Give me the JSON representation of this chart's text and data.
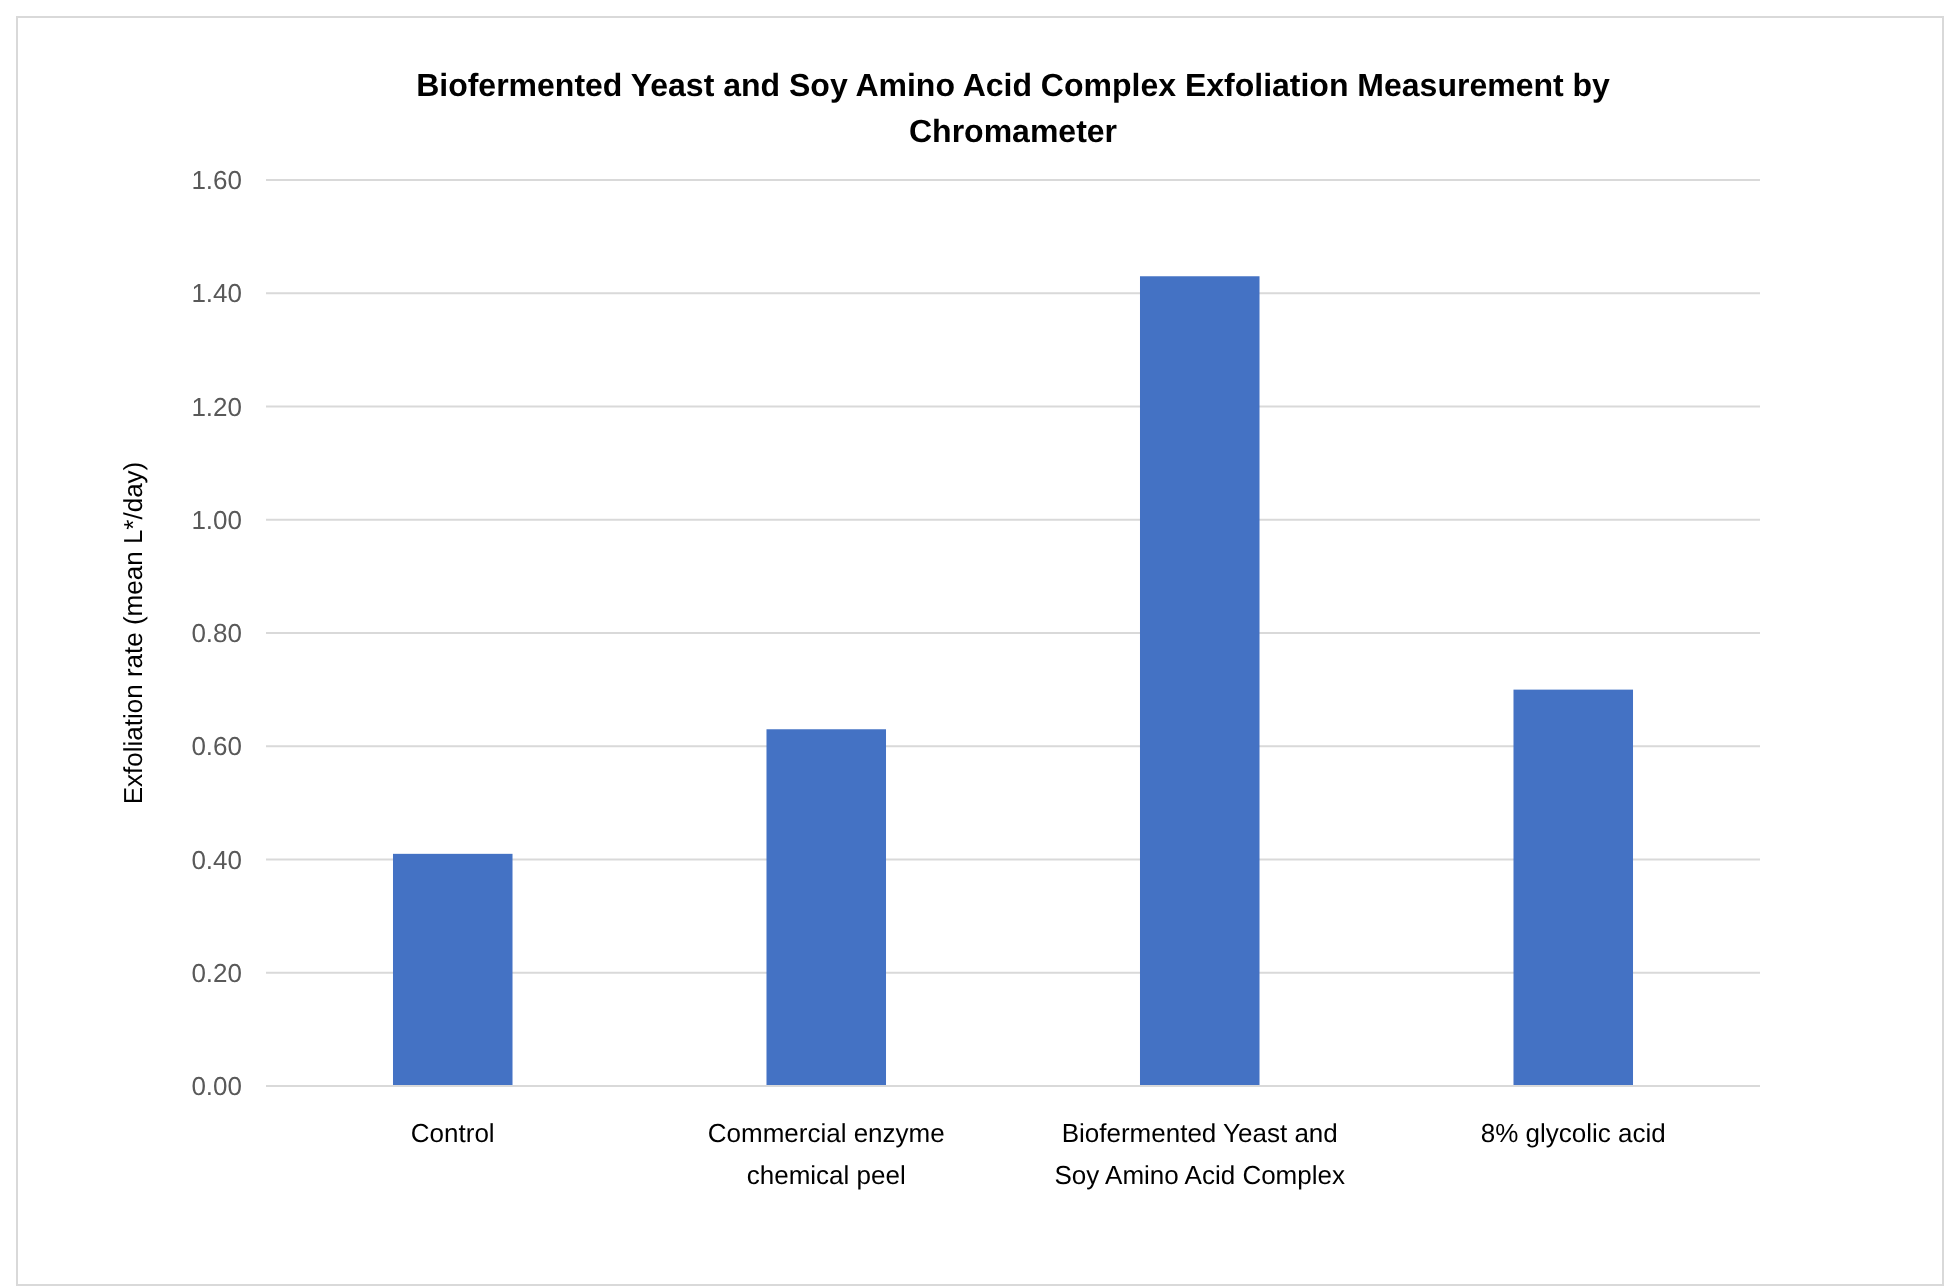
{
  "chart_data": {
    "type": "bar",
    "title": "Biofermented Yeast and Soy Amino Acid Complex Exfoliation Measurement by Chromameter",
    "ylabel": "Exfoliation rate (mean L*/day)",
    "categories": [
      "Control",
      "Commercial enzyme chemical peel",
      "Biofermented Yeast and Soy Amino Acid Complex",
      "8% glycolic acid"
    ],
    "values": [
      0.41,
      0.63,
      1.43,
      0.7
    ],
    "color": "#4472c4",
    "ylim": [
      0,
      1.6
    ],
    "yticks": [
      {
        "value": 0,
        "label": "0.00"
      },
      {
        "value": 0.2,
        "label": "0.20"
      },
      {
        "value": 0.4,
        "label": "0.40"
      },
      {
        "value": 0.6,
        "label": "0.60"
      },
      {
        "value": 0.8,
        "label": "0.80"
      },
      {
        "value": 1.0,
        "label": "1.00"
      },
      {
        "value": 1.2,
        "label": "1.20"
      },
      {
        "value": 1.4,
        "label": "1.40"
      },
      {
        "value": 1.6,
        "label": "1.60"
      }
    ],
    "grid": "y"
  }
}
